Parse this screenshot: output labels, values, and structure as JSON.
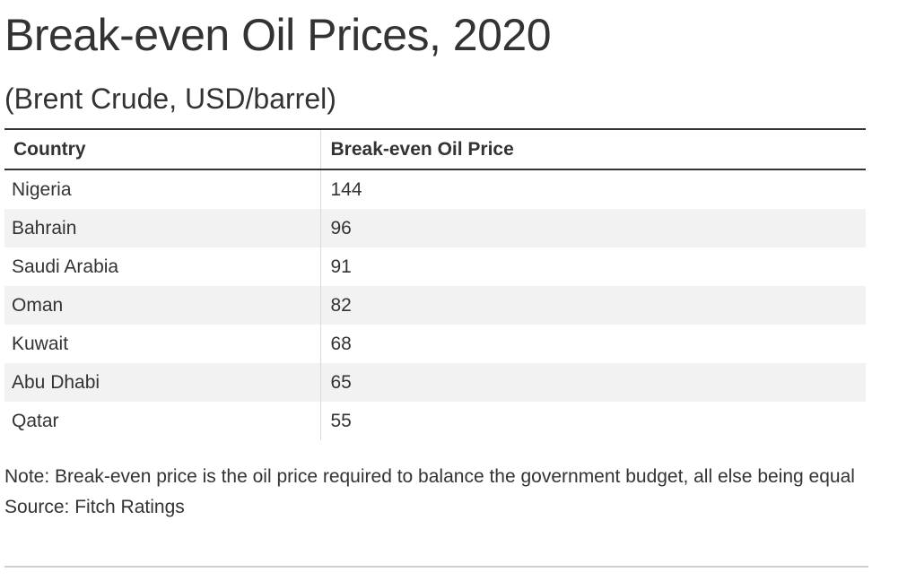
{
  "title": "Break-even Oil Prices, 2020",
  "subtitle": "(Brent Crude, USD/barrel)",
  "table": {
    "headers": [
      "Country",
      "Break-even Oil Price"
    ],
    "rows": [
      {
        "country": "Nigeria",
        "price": "144"
      },
      {
        "country": "Bahrain",
        "price": "96"
      },
      {
        "country": "Saudi Arabia",
        "price": "91"
      },
      {
        "country": "Oman",
        "price": "82"
      },
      {
        "country": "Kuwait",
        "price": "68"
      },
      {
        "country": "Abu Dhabi",
        "price": "65"
      },
      {
        "country": "Qatar",
        "price": "55"
      }
    ]
  },
  "note": "Note: Break-even price is the oil price required to balance the government budget, all else being equal",
  "source": "Source: Fitch Ratings",
  "chart_data": {
    "type": "table",
    "title": "Break-even Oil Prices, 2020",
    "subtitle": "(Brent Crude, USD/barrel)",
    "columns": [
      "Country",
      "Break-even Oil Price"
    ],
    "categories": [
      "Nigeria",
      "Bahrain",
      "Saudi Arabia",
      "Oman",
      "Kuwait",
      "Abu Dhabi",
      "Qatar"
    ],
    "values": [
      144,
      96,
      91,
      82,
      68,
      65,
      55
    ]
  }
}
